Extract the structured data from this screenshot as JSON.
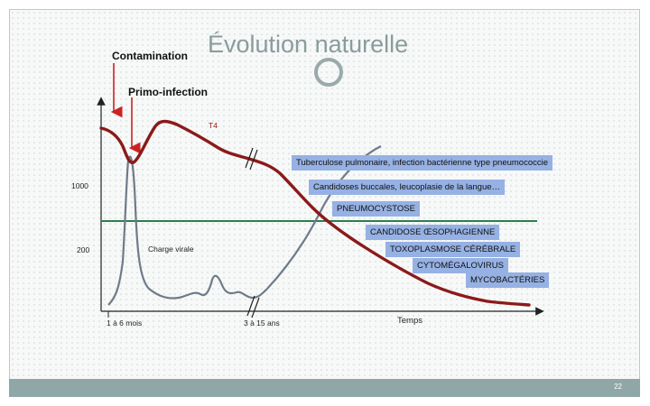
{
  "title": "Évolution naturelle",
  "labels": {
    "contamination": "Contamination",
    "primo_infection": "Primo-infection",
    "t4": "T4",
    "charge_virale": "Charge virale",
    "temps": "Temps",
    "y1000": "1000",
    "y200": "200",
    "x_1a6mois": "1 à 6 mois",
    "x_3a15ans": "3 à 15 ans"
  },
  "annotations": [
    "Tuberculose pulmonaire, infection bactérienne type pneumococcie",
    "Candidoses buccales, leucoplasie de la langue…",
    "PNEUMOCYSTOSE",
    "CANDIDOSE ŒSOPHAGIENNE",
    "TOXOPLASMOSE CÉRÉBRALE",
    "CYTOMÉGALOVIRUS",
    "MYCOBACTÉRIES"
  ],
  "page_number": "22",
  "colors": {
    "t4_curve": "#8b1a1a",
    "viral_curve": "#6e7b88",
    "threshold_line": "#2e7d4f",
    "arrow": "#cc2222",
    "annotation_bg": "#96b1e3",
    "title": "#8a9c9c"
  }
}
